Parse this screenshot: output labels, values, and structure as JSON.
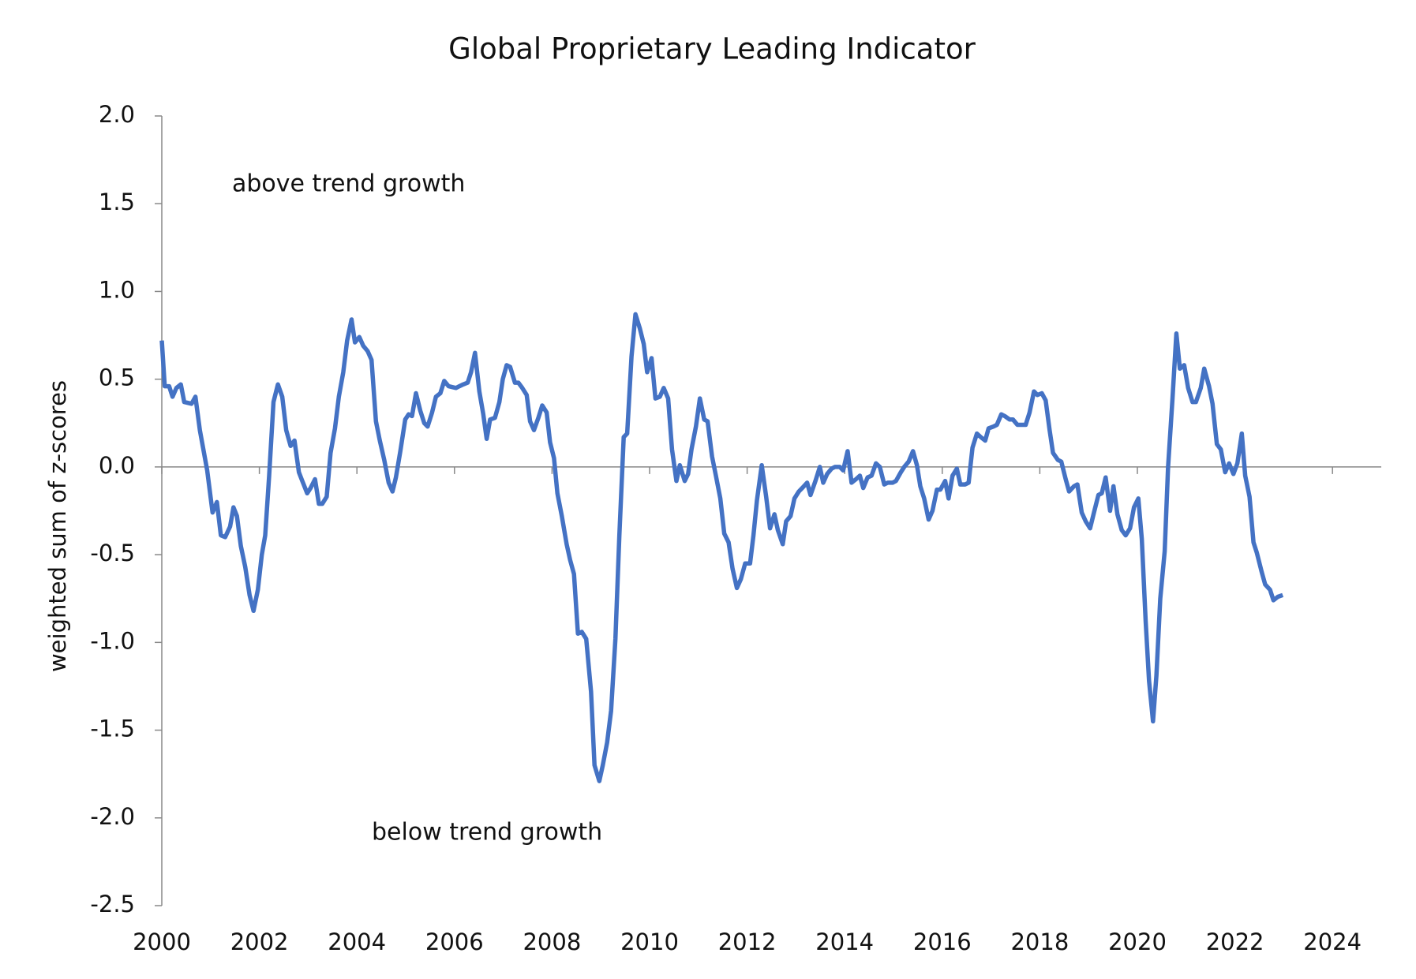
{
  "chart_data": {
    "type": "line",
    "title": "Global Proprietary Leading Indicator",
    "y_label": "weighted sum of z-scores",
    "annotations": [
      "above trend growth",
      "below trend growth"
    ],
    "color": "#4472c4",
    "xlim": [
      2000,
      2025
    ],
    "xticks": [
      2000,
      2002,
      2004,
      2006,
      2008,
      2010,
      2012,
      2014,
      2016,
      2018,
      2020,
      2022,
      2024
    ],
    "ylim": [
      -2.5,
      2.0
    ],
    "yticks": [
      {
        "value": -2.5,
        "label": "-2.5"
      },
      {
        "value": -2,
        "label": "-2.0"
      },
      {
        "value": -1.5,
        "label": "-1.5"
      },
      {
        "value": -1,
        "label": "-1.0"
      },
      -0.5,
      {
        "value": 0,
        "label": "0.0"
      },
      0.5,
      {
        "value": 1,
        "label": "1.0"
      },
      1.5,
      {
        "value": 2,
        "label": "2.0"
      }
    ],
    "x": [
      2000.0,
      2000.06,
      2000.15,
      2000.22,
      2000.3,
      2000.39,
      2000.46,
      2000.61,
      2000.69,
      2000.78,
      2000.93,
      2001.04,
      2001.13,
      2001.21,
      2001.3,
      2001.4,
      2001.47,
      2001.54,
      2001.62,
      2001.71,
      2001.8,
      2001.88,
      2001.97,
      2002.05,
      2002.12,
      2002.2,
      2002.29,
      2002.38,
      2002.47,
      2002.55,
      2002.64,
      2002.72,
      2002.81,
      2002.88,
      2002.98,
      2003.05,
      2003.14,
      2003.22,
      2003.29,
      2003.38,
      2003.46,
      2003.55,
      2003.63,
      2003.72,
      2003.8,
      2003.89,
      2003.96,
      2004.05,
      2004.13,
      2004.22,
      2004.3,
      2004.39,
      2004.47,
      2004.56,
      2004.65,
      2004.73,
      2004.8,
      2004.89,
      2004.99,
      2005.06,
      2005.13,
      2005.21,
      2005.3,
      2005.38,
      2005.45,
      2005.54,
      2005.62,
      2005.71,
      2005.79,
      2005.88,
      2006.03,
      2006.1,
      2006.18,
      2006.27,
      2006.34,
      2006.42,
      2006.51,
      2006.59,
      2006.66,
      2006.73,
      2006.83,
      2006.92,
      2006.99,
      2007.07,
      2007.14,
      2007.24,
      2007.31,
      2007.39,
      2007.48,
      2007.55,
      2007.63,
      2007.72,
      2007.8,
      2007.89,
      2007.96,
      2008.04,
      2008.11,
      2008.2,
      2008.3,
      2008.37,
      2008.45,
      2008.53,
      2008.61,
      2008.7,
      2008.8,
      2008.87,
      2008.97,
      2009.04,
      2009.13,
      2009.21,
      2009.3,
      2009.38,
      2009.47,
      2009.54,
      2009.63,
      2009.71,
      2009.8,
      2009.88,
      2009.95,
      2010.04,
      2010.12,
      2010.21,
      2010.29,
      2010.38,
      2010.46,
      2010.55,
      2010.62,
      2010.72,
      2010.79,
      2010.86,
      2010.95,
      2011.03,
      2011.12,
      2011.19,
      2011.28,
      2011.36,
      2011.45,
      2011.53,
      2011.62,
      2011.7,
      2011.79,
      2011.87,
      2011.96,
      2012.06,
      2012.13,
      2012.2,
      2012.3,
      2012.39,
      2012.47,
      2012.56,
      2012.63,
      2012.73,
      2012.8,
      2012.89,
      2012.97,
      2013.06,
      2013.13,
      2013.23,
      2013.3,
      2013.4,
      2013.49,
      2013.56,
      2013.64,
      2013.73,
      2013.8,
      2013.9,
      2013.97,
      2014.06,
      2014.14,
      2014.23,
      2014.31,
      2014.38,
      2014.47,
      2014.55,
      2014.64,
      2014.72,
      2014.81,
      2014.88,
      2014.98,
      2015.05,
      2015.15,
      2015.22,
      2015.31,
      2015.4,
      2015.48,
      2015.55,
      2015.63,
      2015.72,
      2015.8,
      2015.89,
      2015.96,
      2016.06,
      2016.13,
      2016.21,
      2016.3,
      2016.37,
      2016.47,
      2016.54,
      2016.62,
      2016.71,
      2016.79,
      2016.88,
      2016.95,
      2017.05,
      2017.12,
      2017.21,
      2017.28,
      2017.38,
      2017.45,
      2017.54,
      2017.62,
      2017.71,
      2017.79,
      2017.88,
      2017.95,
      2018.04,
      2018.12,
      2018.2,
      2018.27,
      2018.37,
      2018.44,
      2018.53,
      2018.6,
      2018.7,
      2018.77,
      2018.86,
      2018.94,
      2019.03,
      2019.11,
      2019.2,
      2019.27,
      2019.35,
      2019.44,
      2019.51,
      2019.59,
      2019.68,
      2019.76,
      2019.85,
      2019.93,
      2020.02,
      2020.09,
      2020.17,
      2020.24,
      2020.32,
      2020.39,
      2020.47,
      2020.56,
      2020.63,
      2020.72,
      2020.8,
      2020.87,
      2020.96,
      2021.04,
      2021.13,
      2021.2,
      2021.3,
      2021.37,
      2021.47,
      2021.54,
      2021.63,
      2021.71,
      2021.8,
      2021.88,
      2021.97,
      2022.05,
      2022.14,
      2022.21,
      2022.3,
      2022.38,
      2022.45,
      2022.55,
      2022.62,
      2022.72,
      2022.79,
      2022.88,
      2022.98
    ],
    "values": [
      0.72,
      0.46,
      0.46,
      0.4,
      0.45,
      0.47,
      0.37,
      0.36,
      0.4,
      0.21,
      -0.02,
      -0.26,
      -0.2,
      -0.39,
      -0.4,
      -0.34,
      -0.23,
      -0.28,
      -0.45,
      -0.57,
      -0.73,
      -0.82,
      -0.7,
      -0.5,
      -0.39,
      -0.05,
      0.37,
      0.47,
      0.4,
      0.21,
      0.12,
      0.15,
      -0.03,
      -0.08,
      -0.15,
      -0.12,
      -0.07,
      -0.21,
      -0.21,
      -0.17,
      0.08,
      0.22,
      0.4,
      0.54,
      0.72,
      0.84,
      0.71,
      0.74,
      0.69,
      0.66,
      0.61,
      0.26,
      0.15,
      0.04,
      -0.09,
      -0.14,
      -0.06,
      0.09,
      0.27,
      0.3,
      0.29,
      0.42,
      0.32,
      0.25,
      0.23,
      0.31,
      0.4,
      0.42,
      0.49,
      0.46,
      0.45,
      0.46,
      0.47,
      0.48,
      0.54,
      0.65,
      0.43,
      0.3,
      0.16,
      0.27,
      0.28,
      0.37,
      0.5,
      0.58,
      0.57,
      0.48,
      0.48,
      0.45,
      0.41,
      0.26,
      0.21,
      0.28,
      0.35,
      0.31,
      0.14,
      0.05,
      -0.15,
      -0.28,
      -0.44,
      -0.53,
      -0.61,
      -0.95,
      -0.94,
      -0.98,
      -1.28,
      -1.7,
      -1.79,
      -1.7,
      -1.57,
      -1.39,
      -0.98,
      -0.39,
      0.17,
      0.19,
      0.63,
      0.87,
      0.79,
      0.7,
      0.54,
      0.62,
      0.39,
      0.4,
      0.45,
      0.39,
      0.1,
      -0.08,
      0.01,
      -0.08,
      -0.04,
      0.1,
      0.23,
      0.39,
      0.27,
      0.26,
      0.06,
      -0.05,
      -0.18,
      -0.38,
      -0.43,
      -0.58,
      -0.69,
      -0.64,
      -0.55,
      -0.55,
      -0.39,
      -0.19,
      0.01,
      -0.17,
      -0.35,
      -0.27,
      -0.36,
      -0.44,
      -0.31,
      -0.28,
      -0.18,
      -0.14,
      -0.12,
      -0.09,
      -0.16,
      -0.08,
      0.0,
      -0.09,
      -0.04,
      -0.01,
      0.0,
      0.0,
      -0.02,
      0.09,
      -0.09,
      -0.07,
      -0.05,
      -0.12,
      -0.06,
      -0.05,
      0.02,
      0.0,
      -0.1,
      -0.09,
      -0.09,
      -0.08,
      -0.03,
      0.0,
      0.03,
      0.09,
      0.01,
      -0.11,
      -0.18,
      -0.3,
      -0.25,
      -0.13,
      -0.13,
      -0.08,
      -0.18,
      -0.05,
      -0.01,
      -0.1,
      -0.1,
      -0.09,
      0.11,
      0.19,
      0.17,
      0.15,
      0.22,
      0.23,
      0.24,
      0.3,
      0.29,
      0.27,
      0.27,
      0.24,
      0.24,
      0.24,
      0.31,
      0.43,
      0.41,
      0.42,
      0.38,
      0.21,
      0.08,
      0.04,
      0.03,
      -0.07,
      -0.14,
      -0.11,
      -0.1,
      -0.26,
      -0.31,
      -0.35,
      -0.26,
      -0.16,
      -0.15,
      -0.06,
      -0.25,
      -0.11,
      -0.27,
      -0.36,
      -0.39,
      -0.35,
      -0.23,
      -0.18,
      -0.41,
      -0.88,
      -1.22,
      -1.45,
      -1.19,
      -0.75,
      -0.48,
      0.0,
      0.39,
      0.76,
      0.56,
      0.58,
      0.45,
      0.37,
      0.37,
      0.45,
      0.56,
      0.46,
      0.36,
      0.13,
      0.1,
      -0.03,
      0.02,
      -0.04,
      0.02,
      0.19,
      -0.05,
      -0.17,
      -0.43,
      -0.49,
      -0.6,
      -0.67,
      -0.7,
      -0.76,
      -0.74,
      -0.73
    ]
  }
}
